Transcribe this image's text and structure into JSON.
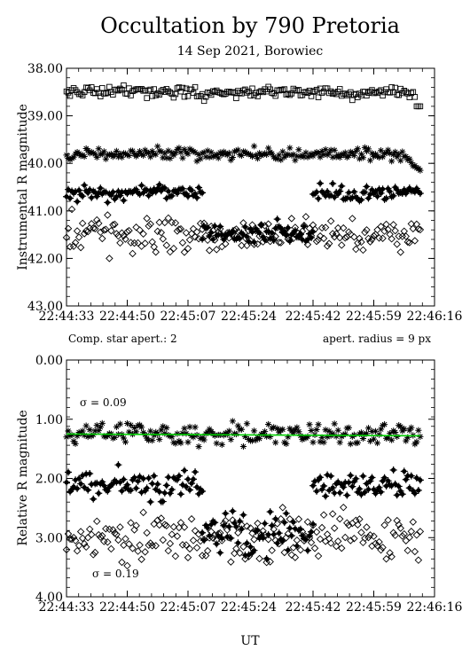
{
  "title": "Occultation by 790 Pretoria",
  "subtitle": "14 Sep 2021, Borowiec",
  "xlabel": "UT",
  "x_ticks": [
    "22:44:33",
    "22:44:50",
    "22:45:07",
    "22:45:24",
    "22:45:42",
    "22:45:59",
    "22:46:16"
  ],
  "note_left": "Comp. star apert.: 2",
  "note_right": "apert. radius = 9 px",
  "colors": {
    "fit_line": "#00cc00",
    "marks": "#000000"
  },
  "chart_data": [
    {
      "type": "scatter",
      "ylabel": "Instrumental R magnitude",
      "ylim": [
        38.0,
        43.0
      ],
      "y_inverted": true,
      "y_ticks": [
        "38.00",
        "39.00",
        "40.00",
        "41.00",
        "42.00",
        "43.00"
      ],
      "x_range": [
        "22:44:33",
        "22:46:16"
      ],
      "series": [
        {
          "marker": "square-open",
          "x_start": "22:44:33",
          "x_end": "22:46:12",
          "mean": 38.5,
          "scatter": 0.06,
          "drop_near_end": 38.8
        },
        {
          "marker": "asterisk",
          "x_start": "22:44:33",
          "x_end": "22:46:12",
          "mean": 39.8,
          "scatter": 0.06,
          "rise_near_end": 40.15
        },
        {
          "marker": "filled-star",
          "segments": [
            [
              "22:44:33",
              "22:45:11"
            ],
            [
              "22:45:42",
              "22:46:12"
            ]
          ],
          "mean": 40.62,
          "scatter": 0.08
        },
        {
          "marker": "filled-star",
          "segments": [
            [
              "22:45:11",
              "22:45:42"
            ]
          ],
          "mean": 41.45,
          "scatter": 0.12
        },
        {
          "marker": "diamond-open",
          "x_start": "22:44:33",
          "x_end": "22:46:12",
          "mean": 41.5,
          "scatter": 0.18
        }
      ]
    },
    {
      "type": "scatter",
      "ylabel": "Relative R magnitude",
      "ylim": [
        0.0,
        4.0
      ],
      "y_inverted": true,
      "y_ticks": [
        "0.00",
        "1.00",
        "2.00",
        "3.00",
        "4.00"
      ],
      "x_range": [
        "22:44:33",
        "22:46:16"
      ],
      "annotations": [
        "σ = 0.09",
        "σ = 0.19"
      ],
      "series": [
        {
          "marker": "asterisk",
          "x_start": "22:44:33",
          "x_end": "22:46:12",
          "mean": 1.25,
          "scatter": 0.09
        },
        {
          "marker": "line",
          "x": [
            "22:44:33",
            "22:46:12"
          ],
          "y": [
            1.25,
            1.28
          ]
        },
        {
          "marker": "filled-star",
          "segments": [
            [
              "22:44:33",
              "22:45:11"
            ],
            [
              "22:45:42",
              "22:46:12"
            ]
          ],
          "mean": 2.1,
          "scatter": 0.12
        },
        {
          "marker": "filled-star",
          "segments": [
            [
              "22:45:11",
              "22:45:42"
            ]
          ],
          "mean": 2.9,
          "scatter": 0.19
        },
        {
          "marker": "diamond-open",
          "x_start": "22:44:33",
          "x_end": "22:46:12",
          "mean": 3.0,
          "scatter": 0.19
        }
      ]
    }
  ]
}
